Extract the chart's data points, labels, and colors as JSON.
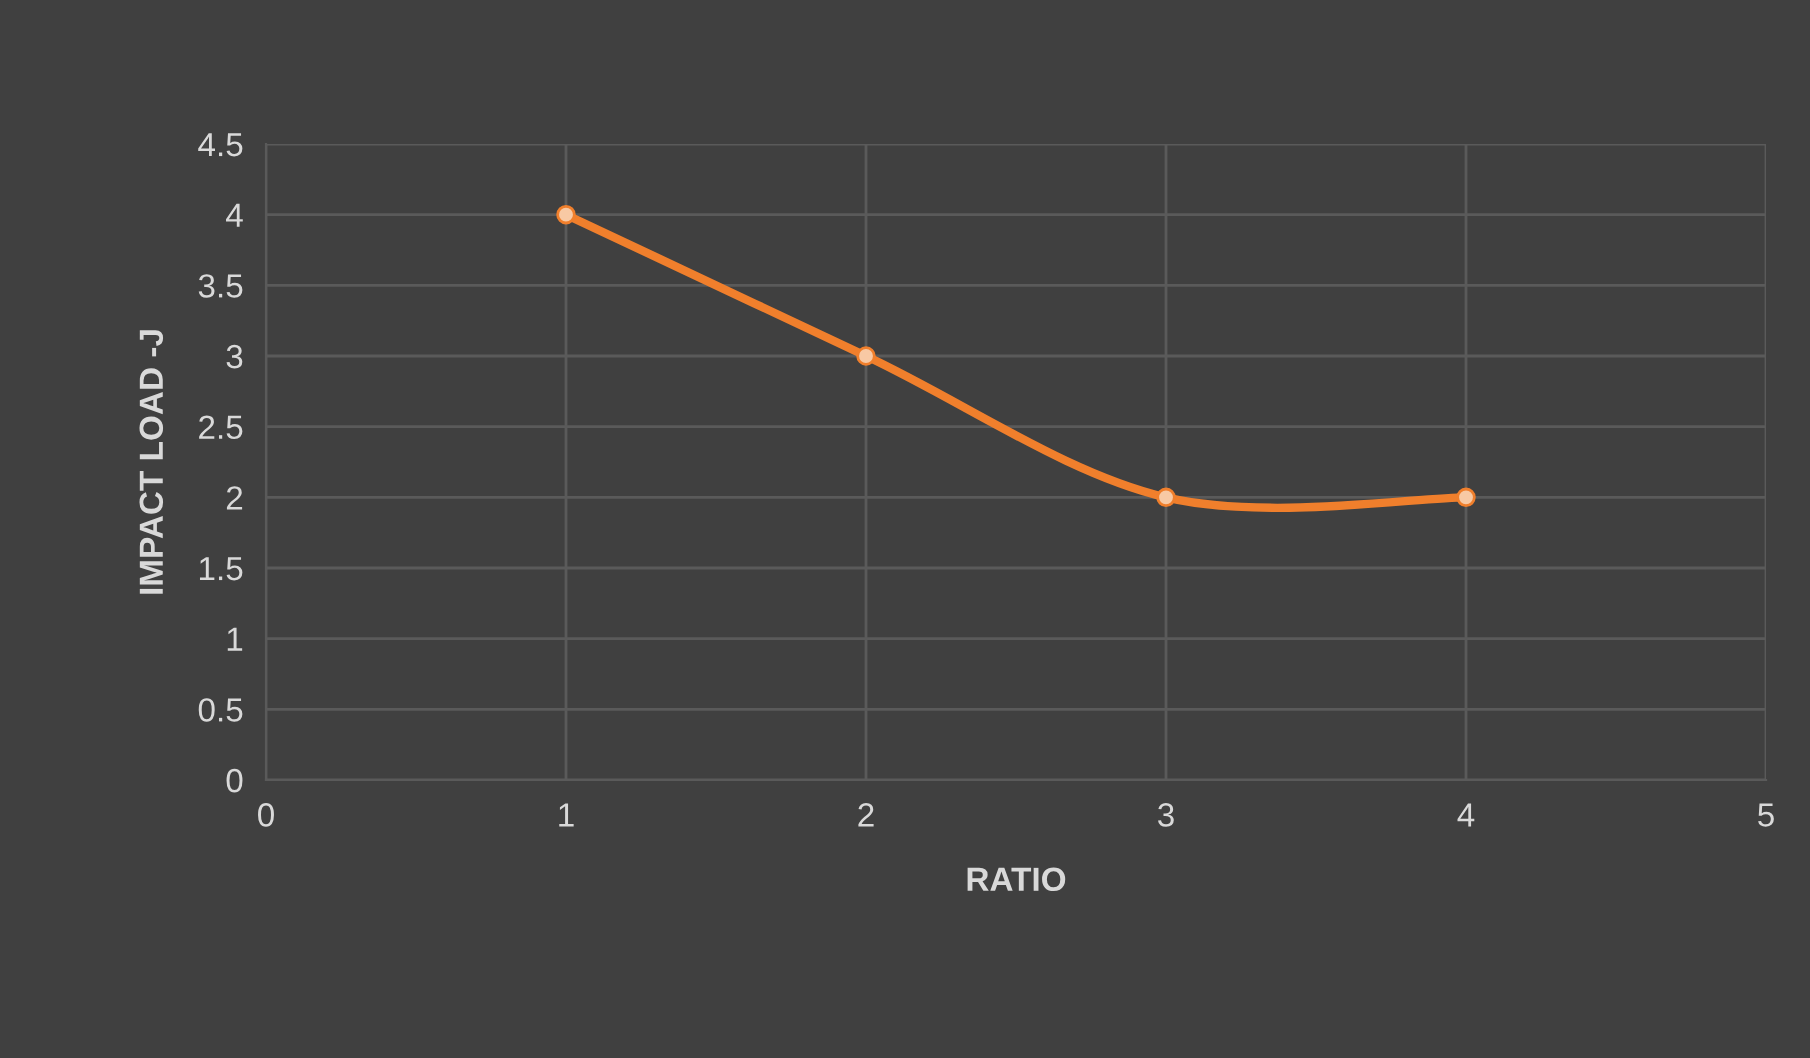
{
  "chart_data": {
    "type": "line",
    "xlabel": "RATIO",
    "ylabel": "IMPACT LOAD -J",
    "x": [
      1,
      2,
      3,
      4
    ],
    "series": [
      {
        "color": "#f07f2c",
        "values": [
          4,
          3,
          2,
          2
        ]
      }
    ],
    "xlim": [
      0,
      5
    ],
    "xticks": [
      0,
      1,
      2,
      3,
      4,
      5
    ],
    "ylim": [
      0,
      4.5
    ],
    "yticks": [
      0,
      0.5,
      1,
      1.5,
      2,
      2.5,
      3,
      3.5,
      4,
      4.5
    ],
    "grid": true,
    "marker": "circle",
    "line_style": "solid"
  }
}
